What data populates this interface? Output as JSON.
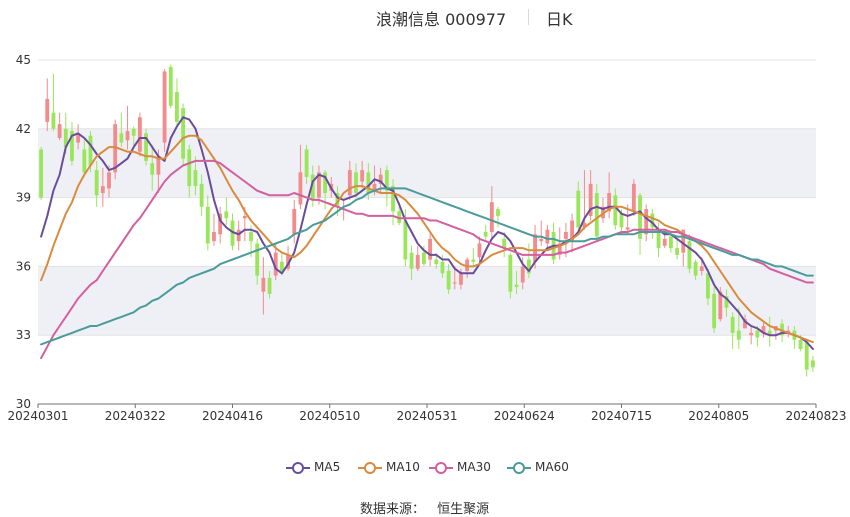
{
  "page": {
    "title": "浪潮信息 000977",
    "period": "日K",
    "source_label": "数据来源：",
    "source_value": "恒生聚源"
  },
  "colors": {
    "up": "#f28b8b",
    "down": "#9ae65a",
    "ma5": "#6a4c9c",
    "ma10": "#d98b3e",
    "ma30": "#d45fa0",
    "ma60": "#4a9c9a",
    "band": "#eef0f6",
    "grid": "#e3e3e3",
    "axis": "#333333"
  },
  "chart_data": {
    "type": "candlestick",
    "x_tick_labels": [
      "20240301",
      "20240322",
      "20240416",
      "20240510",
      "20240531",
      "20240624",
      "20240715",
      "20240805",
      "20240823"
    ],
    "y_ticks": [
      30,
      33,
      36,
      39,
      42,
      45
    ],
    "ylim": [
      30,
      45
    ],
    "legend": [
      "MA5",
      "MA10",
      "MA30",
      "MA60"
    ],
    "legend_position": "bottom",
    "candles": [
      [
        41.1,
        39.0,
        41.2,
        38.9
      ],
      [
        42.3,
        43.3,
        44.2,
        41.9
      ],
      [
        42.7,
        42.0,
        44.4,
        41.9
      ],
      [
        41.6,
        42.2,
        42.7,
        41.5
      ],
      [
        42.0,
        41.2,
        42.7,
        40.9
      ],
      [
        41.9,
        40.6,
        42.3,
        40.4
      ],
      [
        41.4,
        41.8,
        42.2,
        41.1
      ],
      [
        41.1,
        40.1,
        41.6,
        39.9
      ],
      [
        41.7,
        40.4,
        41.9,
        40.1
      ],
      [
        40.2,
        39.1,
        40.6,
        38.6
      ],
      [
        39.2,
        39.5,
        40.3,
        38.6
      ],
      [
        39.4,
        40.1,
        40.4,
        39.0
      ],
      [
        40.1,
        42.2,
        42.4,
        39.8
      ],
      [
        41.8,
        41.4,
        42.7,
        41.2
      ],
      [
        41.5,
        41.9,
        43.0,
        41.1
      ],
      [
        42.0,
        41.7,
        42.1,
        41.2
      ],
      [
        41.0,
        42.5,
        42.7,
        40.8
      ],
      [
        41.8,
        40.6,
        42.0,
        40.4
      ],
      [
        40.5,
        40.0,
        41.3,
        39.3
      ],
      [
        40.0,
        40.8,
        41.1,
        39.2
      ],
      [
        41.4,
        44.5,
        44.6,
        41.0
      ],
      [
        44.7,
        43.0,
        44.8,
        42.9
      ],
      [
        43.6,
        42.3,
        44.2,
        42.1
      ],
      [
        42.9,
        40.7,
        43.1,
        40.4
      ],
      [
        41.1,
        39.5,
        41.3,
        39.0
      ],
      [
        40.2,
        39.5,
        40.8,
        39.1
      ],
      [
        39.6,
        38.6,
        40.0,
        38.2
      ],
      [
        38.6,
        37.0,
        39.1,
        36.7
      ],
      [
        37.1,
        37.5,
        38.3,
        36.9
      ],
      [
        37.4,
        38.3,
        38.6,
        37.0
      ],
      [
        38.4,
        38.1,
        39.0,
        37.8
      ],
      [
        38.0,
        36.9,
        38.3,
        36.7
      ],
      [
        37.1,
        37.6,
        38.0,
        36.7
      ],
      [
        38.1,
        38.2,
        38.6,
        37.1
      ],
      [
        37.5,
        37.1,
        37.8,
        36.4
      ],
      [
        37.0,
        35.6,
        37.2,
        35.2
      ],
      [
        34.9,
        35.5,
        36.4,
        33.9
      ],
      [
        35.5,
        34.8,
        35.8,
        34.6
      ],
      [
        35.6,
        36.6,
        37.0,
        35.4
      ],
      [
        36.2,
        35.8,
        36.6,
        35.6
      ],
      [
        35.9,
        36.5,
        36.9,
        35.8
      ],
      [
        37.4,
        38.5,
        38.9,
        37.0
      ],
      [
        38.7,
        40.1,
        41.3,
        38.5
      ],
      [
        41.1,
        39.9,
        41.3,
        39.6
      ],
      [
        40.0,
        38.9,
        40.4,
        38.6
      ],
      [
        39.0,
        40.1,
        40.4,
        38.7
      ],
      [
        40.1,
        39.2,
        40.2,
        38.5
      ],
      [
        39.3,
        39.6,
        39.9,
        39.0
      ],
      [
        39.2,
        38.6,
        39.5,
        38.2
      ],
      [
        38.5,
        38.5,
        38.9,
        38.0
      ],
      [
        39.1,
        40.2,
        40.6,
        38.9
      ],
      [
        40.1,
        39.2,
        40.5,
        39.0
      ],
      [
        39.7,
        40.2,
        40.6,
        39.4
      ],
      [
        40.1,
        39.2,
        40.5,
        38.9
      ],
      [
        39.3,
        39.6,
        40.4,
        39.1
      ],
      [
        39.6,
        40.0,
        40.3,
        39.2
      ],
      [
        40.2,
        39.3,
        40.4,
        38.6
      ],
      [
        39.5,
        38.4,
        39.8,
        37.8
      ],
      [
        38.4,
        37.9,
        38.8,
        37.8
      ],
      [
        38.0,
        36.3,
        38.5,
        36.0
      ],
      [
        36.6,
        35.9,
        36.9,
        35.4
      ],
      [
        35.9,
        36.5,
        36.9,
        35.8
      ],
      [
        36.6,
        36.1,
        36.9,
        36.0
      ],
      [
        36.3,
        37.2,
        37.4,
        36.0
      ],
      [
        36.3,
        36.1,
        36.6,
        35.9
      ],
      [
        36.2,
        35.7,
        36.5,
        35.5
      ],
      [
        35.8,
        35.0,
        36.1,
        34.8
      ],
      [
        35.3,
        35.3,
        36.0,
        35.0
      ],
      [
        35.2,
        35.7,
        35.9,
        35.0
      ],
      [
        35.8,
        36.3,
        36.4,
        35.5
      ],
      [
        36.3,
        36.2,
        36.8,
        36.0
      ],
      [
        36.4,
        37.0,
        37.3,
        36.1
      ],
      [
        37.5,
        37.3,
        37.8,
        37.1
      ],
      [
        37.5,
        38.8,
        39.5,
        37.2
      ],
      [
        38.5,
        38.2,
        38.6,
        37.7
      ],
      [
        37.2,
        36.8,
        37.5,
        36.4
      ],
      [
        36.5,
        34.9,
        36.6,
        34.6
      ],
      [
        35.2,
        35.1,
        35.8,
        34.8
      ],
      [
        35.3,
        36.0,
        36.4,
        35.0
      ],
      [
        36.3,
        35.7,
        37.0,
        35.5
      ],
      [
        36.2,
        37.4,
        37.8,
        35.9
      ],
      [
        37.1,
        37.2,
        38.0,
        36.9
      ],
      [
        37.0,
        37.6,
        37.8,
        36.7
      ],
      [
        37.5,
        36.3,
        37.9,
        36.1
      ],
      [
        36.5,
        37.0,
        37.7,
        36.3
      ],
      [
        37.2,
        37.5,
        37.9,
        36.4
      ],
      [
        37.1,
        38.0,
        38.3,
        36.6
      ],
      [
        39.3,
        37.7,
        39.7,
        37.5
      ],
      [
        37.7,
        37.9,
        40.2,
        37.6
      ],
      [
        38.2,
        39.6,
        40.2,
        38.0
      ],
      [
        39.2,
        37.3,
        39.6,
        37.1
      ],
      [
        38.1,
        38.6,
        39.0,
        37.9
      ],
      [
        38.4,
        39.2,
        40.1,
        38.1
      ],
      [
        39.1,
        37.8,
        39.4,
        37.6
      ],
      [
        38.3,
        37.7,
        38.5,
        37.4
      ],
      [
        37.6,
        37.7,
        38.7,
        37.4
      ],
      [
        38.4,
        39.6,
        39.8,
        38.2
      ],
      [
        39.1,
        37.2,
        39.2,
        36.5
      ],
      [
        37.4,
        38.5,
        38.7,
        37.1
      ],
      [
        38.3,
        37.7,
        38.5,
        37.2
      ],
      [
        37.6,
        36.8,
        37.9,
        36.4
      ],
      [
        36.9,
        37.2,
        37.5,
        36.8
      ],
      [
        37.3,
        36.8,
        37.4,
        36.6
      ],
      [
        36.8,
        36.5,
        37.2,
        36.3
      ],
      [
        36.6,
        37.6,
        37.6,
        36.0
      ],
      [
        37.1,
        35.9,
        37.4,
        35.7
      ],
      [
        36.2,
        35.6,
        36.3,
        35.4
      ],
      [
        35.8,
        36.0,
        36.4,
        35.6
      ],
      [
        35.7,
        34.6,
        35.9,
        34.3
      ],
      [
        34.8,
        33.3,
        35.1,
        33.1
      ],
      [
        33.7,
        34.9,
        35.1,
        33.6
      ],
      [
        34.7,
        34.2,
        35.0,
        33.8
      ],
      [
        33.8,
        33.1,
        34.0,
        32.4
      ],
      [
        33.2,
        32.8,
        34.2,
        32.4
      ],
      [
        33.3,
        33.7,
        33.9,
        33.3
      ],
      [
        33.0,
        33.1,
        33.4,
        32.6
      ],
      [
        33.2,
        32.9,
        33.4,
        32.5
      ],
      [
        33.1,
        33.4,
        33.6,
        32.9
      ],
      [
        33.2,
        33.0,
        33.8,
        32.5
      ],
      [
        33.2,
        33.4,
        33.4,
        32.8
      ],
      [
        33.5,
        33.0,
        33.7,
        32.7
      ],
      [
        33.1,
        33.2,
        33.4,
        32.9
      ],
      [
        33.2,
        32.8,
        33.4,
        32.4
      ],
      [
        32.8,
        32.4,
        33.0,
        32.3
      ],
      [
        32.7,
        31.5,
        32.8,
        31.2
      ],
      [
        31.9,
        31.6,
        32.1,
        31.4
      ]
    ],
    "series": [
      {
        "name": "MA5",
        "values": [
          37.3,
          38.2,
          39.3,
          40.0,
          41.2,
          41.7,
          41.8,
          41.6,
          41.3,
          40.9,
          40.6,
          40.2,
          40.3,
          40.5,
          40.7,
          41.2,
          41.6,
          41.6,
          41.2,
          40.8,
          40.6,
          41.6,
          42.1,
          42.5,
          42.4,
          42.0,
          41.1,
          40.1,
          38.9,
          38.0,
          37.7,
          37.5,
          37.4,
          37.6,
          37.6,
          37.5,
          37.0,
          36.6,
          35.9,
          35.7,
          36.1,
          36.6,
          37.6,
          38.7,
          39.7,
          40.0,
          39.9,
          39.4,
          39.0,
          38.9,
          39.0,
          39.1,
          39.3,
          39.5,
          39.8,
          39.7,
          39.4,
          39.3,
          38.7,
          38.0,
          37.5,
          37.0,
          36.7,
          36.5,
          36.5,
          36.3,
          36.3,
          35.9,
          35.7,
          35.7,
          35.7,
          36.1,
          36.7,
          37.2,
          37.5,
          37.4,
          37.1,
          36.6,
          36.1,
          35.8,
          36.2,
          36.5,
          36.8,
          36.9,
          36.9,
          37.1,
          37.2,
          37.5,
          38.1,
          38.5,
          38.6,
          38.5,
          38.6,
          38.6,
          38.3,
          38.2,
          38.3,
          38.4,
          38.1,
          37.9,
          37.6,
          37.4,
          37.4,
          37.2,
          37.0,
          36.8,
          36.6,
          36.3,
          35.8,
          35.2,
          34.8,
          34.6,
          34.3,
          34.0,
          33.6,
          33.4,
          33.3,
          33.1,
          33.0,
          33.0,
          33.1,
          33.1,
          33.0,
          32.9,
          32.7,
          32.4
        ]
      },
      {
        "name": "MA10",
        "values": [
          35.4,
          36.1,
          36.9,
          37.6,
          38.3,
          38.8,
          39.5,
          40.0,
          40.4,
          40.8,
          41.0,
          41.2,
          41.2,
          41.1,
          41.0,
          41.0,
          40.9,
          40.8,
          40.8,
          40.7,
          40.7,
          41.0,
          41.3,
          41.6,
          41.7,
          41.7,
          41.5,
          41.1,
          40.7,
          40.3,
          39.8,
          39.3,
          38.9,
          38.4,
          38.0,
          37.7,
          37.4,
          37.1,
          36.8,
          36.6,
          36.5,
          36.4,
          36.6,
          36.9,
          37.3,
          37.7,
          38.1,
          38.5,
          38.8,
          39.2,
          39.4,
          39.5,
          39.5,
          39.4,
          39.3,
          39.2,
          39.2,
          39.2,
          39.1,
          38.9,
          38.6,
          38.3,
          37.9,
          37.5,
          37.1,
          36.8,
          36.6,
          36.3,
          36.1,
          36.0,
          36.0,
          36.1,
          36.3,
          36.5,
          36.6,
          36.7,
          36.8,
          36.8,
          36.8,
          36.7,
          36.7,
          36.7,
          36.7,
          36.8,
          36.9,
          37.0,
          37.2,
          37.4,
          37.7,
          37.9,
          38.1,
          38.3,
          38.5,
          38.6,
          38.6,
          38.5,
          38.4,
          38.3,
          38.2,
          38.1,
          38.0,
          37.8,
          37.7,
          37.6,
          37.4,
          37.3,
          37.1,
          36.9,
          36.6,
          36.2,
          35.8,
          35.4,
          35.0,
          34.6,
          34.3,
          34.0,
          33.8,
          33.6,
          33.4,
          33.3,
          33.2,
          33.1,
          33.0,
          32.9,
          32.8,
          32.7
        ]
      },
      {
        "name": "MA30",
        "values": [
          32.0,
          32.5,
          33.0,
          33.4,
          33.8,
          34.2,
          34.6,
          34.9,
          35.2,
          35.4,
          35.8,
          36.2,
          36.6,
          37.0,
          37.4,
          37.8,
          38.1,
          38.5,
          38.9,
          39.3,
          39.7,
          40.0,
          40.2,
          40.4,
          40.5,
          40.6,
          40.6,
          40.6,
          40.6,
          40.5,
          40.3,
          40.1,
          39.9,
          39.7,
          39.5,
          39.3,
          39.2,
          39.1,
          39.1,
          39.1,
          39.1,
          39.2,
          39.1,
          39.0,
          38.9,
          38.9,
          38.8,
          38.7,
          38.6,
          38.5,
          38.4,
          38.3,
          38.3,
          38.2,
          38.2,
          38.2,
          38.2,
          38.2,
          38.1,
          38.1,
          38.1,
          38.1,
          38.1,
          38.0,
          38.0,
          37.9,
          37.8,
          37.7,
          37.6,
          37.5,
          37.4,
          37.2,
          37.1,
          37.0,
          36.9,
          36.8,
          36.7,
          36.6,
          36.5,
          36.5,
          36.5,
          36.5,
          36.5,
          36.5,
          36.6,
          36.6,
          36.7,
          36.8,
          36.9,
          37.0,
          37.1,
          37.2,
          37.3,
          37.4,
          37.5,
          37.5,
          37.6,
          37.6,
          37.6,
          37.6,
          37.6,
          37.6,
          37.5,
          37.5,
          37.4,
          37.3,
          37.2,
          37.1,
          37.0,
          36.9,
          36.8,
          36.7,
          36.6,
          36.5,
          36.4,
          36.3,
          36.2,
          36.1,
          35.9,
          35.8,
          35.7,
          35.6,
          35.5,
          35.4,
          35.3,
          35.3
        ]
      },
      {
        "name": "MA60",
        "values": [
          32.6,
          32.7,
          32.8,
          32.9,
          33.0,
          33.1,
          33.2,
          33.3,
          33.4,
          33.4,
          33.5,
          33.6,
          33.7,
          33.8,
          33.9,
          34.0,
          34.2,
          34.3,
          34.5,
          34.6,
          34.8,
          35.0,
          35.2,
          35.3,
          35.5,
          35.6,
          35.7,
          35.8,
          35.9,
          36.1,
          36.2,
          36.3,
          36.4,
          36.5,
          36.6,
          36.7,
          36.8,
          36.9,
          37.0,
          37.1,
          37.2,
          37.4,
          37.5,
          37.6,
          37.8,
          37.9,
          38.0,
          38.2,
          38.4,
          38.6,
          38.7,
          38.9,
          39.0,
          39.2,
          39.3,
          39.4,
          39.4,
          39.4,
          39.4,
          39.4,
          39.3,
          39.2,
          39.1,
          39.0,
          38.9,
          38.8,
          38.7,
          38.6,
          38.5,
          38.4,
          38.3,
          38.2,
          38.1,
          38.0,
          37.9,
          37.8,
          37.7,
          37.6,
          37.5,
          37.4,
          37.3,
          37.3,
          37.2,
          37.2,
          37.1,
          37.1,
          37.1,
          37.1,
          37.1,
          37.2,
          37.2,
          37.3,
          37.3,
          37.4,
          37.4,
          37.4,
          37.4,
          37.5,
          37.5,
          37.5,
          37.5,
          37.5,
          37.4,
          37.3,
          37.3,
          37.2,
          37.1,
          37.0,
          36.9,
          36.8,
          36.7,
          36.6,
          36.5,
          36.5,
          36.4,
          36.3,
          36.3,
          36.2,
          36.1,
          36.0,
          36.0,
          35.9,
          35.8,
          35.7,
          35.6,
          35.6
        ]
      }
    ]
  }
}
